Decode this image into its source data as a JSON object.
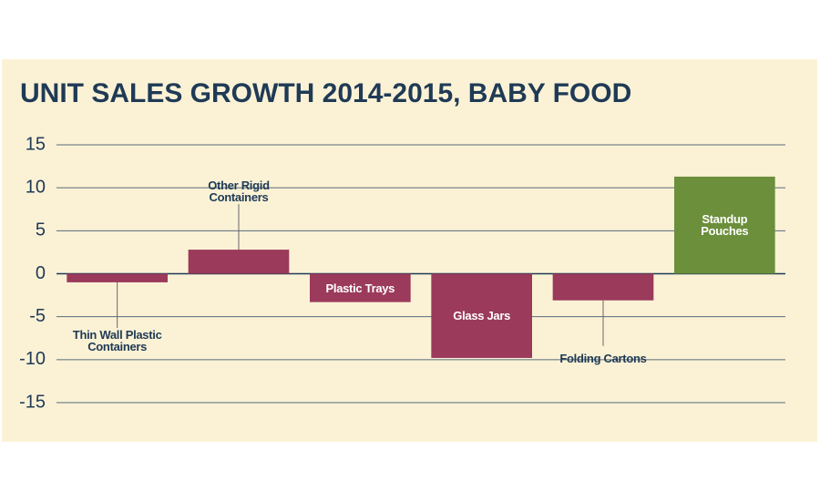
{
  "chart_data": {
    "type": "bar",
    "title": "UNIT SALES GROWTH 2014-2015, BABY FOOD",
    "categories": [
      "Thin Wall Plastic Containers",
      "Other Rigid Containers",
      "Plastic Trays",
      "Glass Jars",
      "Folding Cartons",
      "Standup Pouches"
    ],
    "values": [
      -1,
      2.8,
      -3.3,
      -9.8,
      -3.1,
      11.3
    ],
    "colors": [
      "#9b3a5b",
      "#9b3a5b",
      "#9b3a5b",
      "#9b3a5b",
      "#9b3a5b",
      "#6b8f3a"
    ],
    "ylim": [
      -15,
      15
    ],
    "yticks": [
      -15,
      -10,
      -5,
      0,
      5,
      10,
      15
    ],
    "grid": true
  }
}
